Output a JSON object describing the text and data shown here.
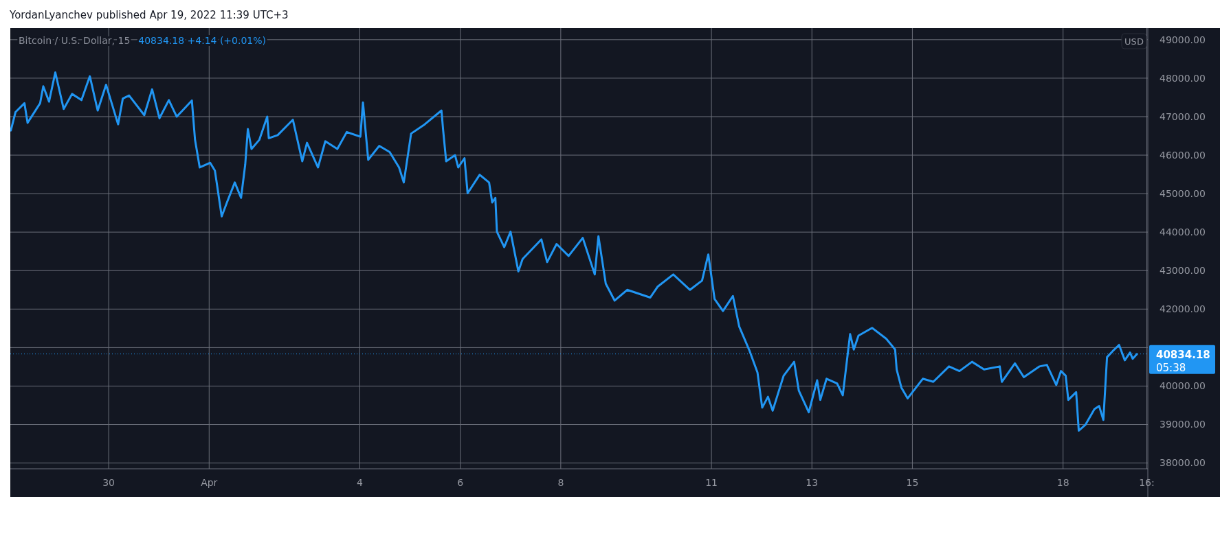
{
  "chart_data": {
    "type": "line",
    "title": "Bitcoin / U.S. Dollar, 15",
    "subtitle": "40834.18  +4.14 (+0.01%)",
    "annotations": [
      "YordanLyanchev published Apr 19, 2022 11:39 UTC+3",
      "USD",
      "05:38"
    ],
    "x": [
      "2022-03-28T01:15",
      "2022-03-28T03:30",
      "2022-03-28T07:45",
      "2022-03-28T09:15",
      "2022-03-28T15:15",
      "2022-03-28T16:45",
      "2022-03-28T19:30",
      "2022-03-28T22:30",
      "2022-03-29T02:30",
      "2022-03-29T06:30",
      "2022-03-29T11:00",
      "2022-03-29T15:00",
      "2022-03-29T18:45",
      "2022-03-29T22:45",
      "2022-03-30T04:30",
      "2022-03-30T06:45",
      "2022-03-30T09:45",
      "2022-03-30T17:00",
      "2022-03-30T20:45",
      "2022-03-31T00:15",
      "2022-03-31T04:45",
      "2022-03-31T08:30",
      "2022-03-31T15:45",
      "2022-03-31T17:15",
      "2022-03-31T19:30",
      "2022-04-01T00:30",
      "2022-04-01T02:45",
      "2022-04-01T06:00",
      "2022-04-01T08:30",
      "2022-04-01T12:15",
      "2022-04-01T15:15",
      "2022-04-01T17:15",
      "2022-04-01T18:30",
      "2022-04-01T20:15",
      "2022-04-02T00:00",
      "2022-04-02T03:45",
      "2022-04-02T04:30",
      "2022-04-02T08:45",
      "2022-04-02T16:00",
      "2022-04-02T20:30",
      "2022-04-02T22:45",
      "2022-04-03T04:00",
      "2022-04-03T07:30",
      "2022-04-03T13:15",
      "2022-04-03T17:45",
      "2022-04-04T00:15",
      "2022-04-04T01:30",
      "2022-04-04T04:00",
      "2022-04-04T09:15",
      "2022-04-04T14:15",
      "2022-04-04T18:45",
      "2022-04-04T21:00",
      "2022-04-05T00:30",
      "2022-04-05T07:00",
      "2022-04-05T15:00",
      "2022-04-05T15:45",
      "2022-04-05T17:15",
      "2022-04-05T21:30",
      "2022-04-05T23:00",
      "2022-04-06T02:00",
      "2022-04-06T03:30",
      "2022-04-06T09:15",
      "2022-04-06T13:45",
      "2022-04-06T15:15",
      "2022-04-06T16:45",
      "2022-04-06T17:30",
      "2022-04-06T21:00",
      "2022-04-07T00:00",
      "2022-04-07T03:45",
      "2022-04-07T05:45",
      "2022-04-07T14:45",
      "2022-04-07T17:30",
      "2022-04-07T22:00",
      "2022-04-08T03:45",
      "2022-04-08T10:30",
      "2022-04-08T16:15",
      "2022-04-08T18:00",
      "2022-04-08T21:30",
      "2022-04-09T01:45",
      "2022-04-09T07:45",
      "2022-04-09T18:45",
      "2022-04-09T22:15",
      "2022-04-10T05:45",
      "2022-04-10T13:45",
      "2022-04-10T19:30",
      "2022-04-10T22:30",
      "2022-04-11T01:30",
      "2022-04-11T05:30",
      "2022-04-11T10:15",
      "2022-04-11T13:15",
      "2022-04-11T18:15",
      "2022-04-11T22:00",
      "2022-04-12T00:15",
      "2022-04-12T03:00",
      "2022-04-12T05:15",
      "2022-04-12T10:30",
      "2022-04-12T15:30",
      "2022-04-12T17:45",
      "2022-04-12T22:30",
      "2022-04-13T02:30",
      "2022-04-13T04:00",
      "2022-04-13T07:00",
      "2022-04-13T12:00",
      "2022-04-13T14:45",
      "2022-04-13T16:45",
      "2022-04-13T18:15",
      "2022-04-13T20:00",
      "2022-04-13T22:15",
      "2022-04-14T04:45",
      "2022-04-14T11:30",
      "2022-04-14T15:45",
      "2022-04-14T16:30",
      "2022-04-14T18:45",
      "2022-04-14T21:45",
      "2022-04-15T05:00",
      "2022-04-15T10:00",
      "2022-04-15T17:30",
      "2022-04-15T22:30",
      "2022-04-16T04:30",
      "2022-04-16T10:15",
      "2022-04-16T17:45",
      "2022-04-16T18:45",
      "2022-04-17T01:00",
      "2022-04-17T05:15",
      "2022-04-17T12:45",
      "2022-04-17T16:15",
      "2022-04-17T20:45",
      "2022-04-17T23:00",
      "2022-04-18T01:15",
      "2022-04-18T02:30",
      "2022-04-18T06:15",
      "2022-04-18T07:30",
      "2022-04-18T10:45",
      "2022-04-18T15:00",
      "2022-04-18T17:15",
      "2022-04-18T19:15",
      "2022-04-18T21:00",
      "2022-04-18T23:45",
      "2022-04-19T02:45",
      "2022-04-19T05:30",
      "2022-04-19T08:00",
      "2022-04-19T09:15",
      "2022-04-19T11:15"
    ],
    "series": [
      {
        "color": "#2196f3",
        "values": [
          46640,
          47120,
          47350,
          46840,
          47350,
          47790,
          47390,
          48150,
          47200,
          47590,
          47430,
          48050,
          47160,
          47830,
          46800,
          47470,
          47550,
          47040,
          47710,
          46960,
          47430,
          47000,
          47420,
          46400,
          45680,
          45800,
          45600,
          44410,
          44770,
          45290,
          44890,
          45760,
          46680,
          46160,
          46400,
          47000,
          46440,
          46520,
          46920,
          45840,
          46320,
          45680,
          46360,
          46160,
          46600,
          46480,
          47370,
          45880,
          46240,
          46080,
          45680,
          45290,
          46560,
          46800,
          47160,
          46680,
          45840,
          46000,
          45680,
          45920,
          45010,
          45490,
          45290,
          44770,
          44890,
          44010,
          43610,
          44010,
          42980,
          43300,
          43810,
          43220,
          43690,
          43380,
          43850,
          42900,
          43890,
          42660,
          42220,
          42500,
          42300,
          42580,
          42900,
          42500,
          42740,
          43420,
          42260,
          41950,
          42340,
          41550,
          40910,
          40350,
          39440,
          39720,
          39360,
          40270,
          40630,
          39880,
          39320,
          40150,
          39640,
          40190,
          40070,
          39760,
          40670,
          41350,
          40950,
          41310,
          41510,
          41230,
          40950,
          40430,
          39960,
          39680,
          40190,
          40110,
          40510,
          40390,
          40630,
          40430,
          40510,
          40110,
          40590,
          40230,
          40510,
          40550,
          40030,
          40390,
          40270,
          39640,
          39840,
          38840,
          39000,
          39400,
          39480,
          39120,
          40750,
          40910,
          41070,
          40670,
          40870,
          40710,
          40830
        ]
      }
    ],
    "xlim": [
      "2022-03-28T01:00",
      "2022-04-19T16:30"
    ],
    "xticks": [
      {
        "value": "2022-03-30",
        "label": "30"
      },
      {
        "value": "2022-04-01",
        "label": "Apr"
      },
      {
        "value": "2022-04-04",
        "label": "4"
      },
      {
        "value": "2022-04-06",
        "label": "6"
      },
      {
        "value": "2022-04-08",
        "label": "8"
      },
      {
        "value": "2022-04-11",
        "label": "11"
      },
      {
        "value": "2022-04-13",
        "label": "13"
      },
      {
        "value": "2022-04-15",
        "label": "15"
      },
      {
        "value": "2022-04-18",
        "label": "18"
      },
      {
        "value": "2022-04-19T16:00",
        "label": "16:"
      }
    ],
    "ylim": [
      37850,
      49300
    ],
    "yticks": [
      {
        "value": 38000,
        "label": "38000.00"
      },
      {
        "value": 39000,
        "label": "39000.00"
      },
      {
        "value": 40000,
        "label": "40000.00"
      },
      {
        "value": 41000,
        "label": null
      },
      {
        "value": 42000,
        "label": "42000.00"
      },
      {
        "value": 43000,
        "label": "43000.00"
      },
      {
        "value": 44000,
        "label": "44000.00"
      },
      {
        "value": 45000,
        "label": "45000.00"
      },
      {
        "value": 46000,
        "label": "46000.00"
      },
      {
        "value": 47000,
        "label": "47000.00"
      },
      {
        "value": 48000,
        "label": "48000.00"
      },
      {
        "value": 49000,
        "label": "49000.00"
      }
    ],
    "grid": true,
    "ref_lines": [
      {
        "axis": "y",
        "value": 40834.18,
        "label": "40834.18",
        "color": "#2196f3",
        "line_style": "dotted"
      }
    ]
  }
}
